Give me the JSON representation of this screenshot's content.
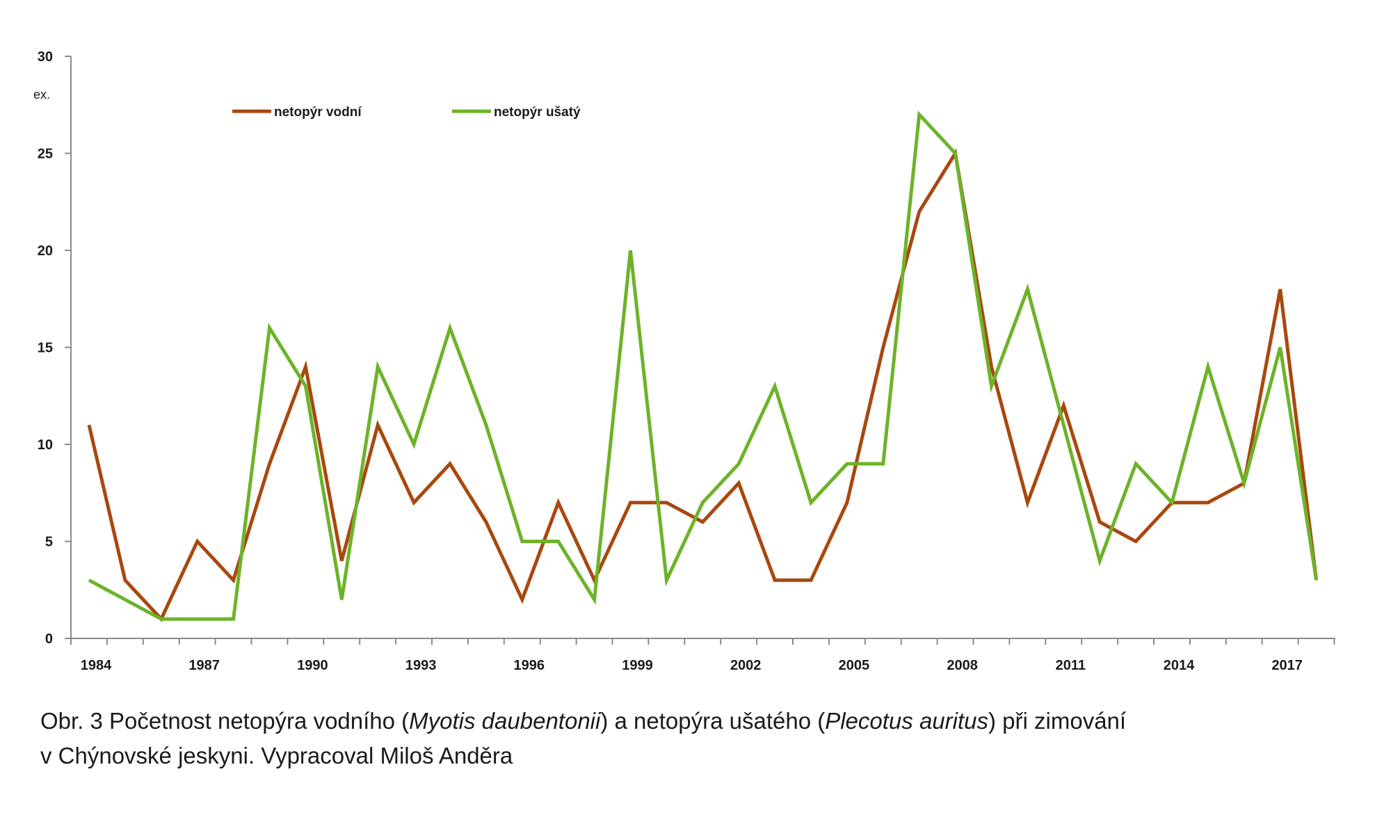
{
  "chart_data": {
    "type": "line",
    "y_unit": "ex.",
    "ylim": [
      0,
      30
    ],
    "yticks": [
      0,
      5,
      10,
      15,
      20,
      25,
      30
    ],
    "xlim": [
      1984,
      2018
    ],
    "xtick_labels": [
      "1984",
      "1987",
      "1990",
      "1993",
      "1996",
      "1999",
      "2002",
      "2005",
      "2008",
      "2011",
      "2014",
      "2017"
    ],
    "grid": false,
    "legend_position": "top-left",
    "x": [
      1984,
      1985,
      1986,
      1987,
      1988,
      1989,
      1990,
      1991,
      1992,
      1993,
      1994,
      1995,
      1996,
      1997,
      1998,
      1999,
      2000,
      2001,
      2002,
      2003,
      2004,
      2005,
      2006,
      2007,
      2008,
      2009,
      2010,
      2011,
      2012,
      2013,
      2014,
      2015,
      2016,
      2017,
      2018
    ],
    "series": [
      {
        "name": "netopýr vodní",
        "color": "#a8480f",
        "values": [
          11,
          3,
          1,
          5,
          3,
          9,
          14,
          4,
          11,
          7,
          9,
          6,
          2,
          7,
          3,
          7,
          7,
          6,
          8,
          3,
          3,
          7,
          15,
          22,
          25,
          14,
          7,
          12,
          6,
          5,
          7,
          7,
          8,
          18,
          3
        ]
      },
      {
        "name": "netopýr ušatý",
        "color": "#6db32a",
        "values": [
          3,
          2,
          1,
          1,
          1,
          16,
          13,
          2,
          14,
          10,
          16,
          11,
          5,
          5,
          2,
          20,
          3,
          7,
          9,
          13,
          7,
          9,
          9,
          27,
          25,
          13,
          18,
          11,
          4,
          9,
          7,
          14,
          8,
          15,
          3
        ]
      }
    ]
  },
  "caption": {
    "line1_part1": "Obr. 3 Početnost netopýra vodního (",
    "species1": "Myotis daubentonii",
    "line1_part2": ") a netopýra ušatého (",
    "species2": "Plecotus auritus",
    "line1_part3": ") při zimování",
    "line2": "v Chýnovské jeskyni. Vypracoval Miloš Anděra"
  }
}
